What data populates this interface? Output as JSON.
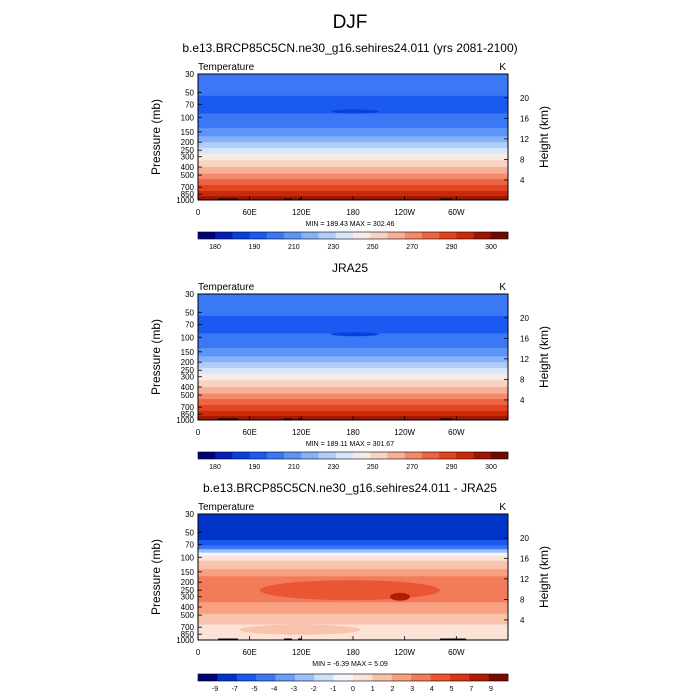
{
  "figure": {
    "title": "DJF"
  },
  "colors": {
    "temperature_palette": [
      "#00007a",
      "#0020b8",
      "#0840e0",
      "#1a5af0",
      "#3a78f5",
      "#5c94f7",
      "#86b2f8",
      "#b0cdfa",
      "#d8e6fb",
      "#f5ece6",
      "#f9d3c2",
      "#f7b097",
      "#f48a6c",
      "#ef6344",
      "#e34420",
      "#c82a0a",
      "#9e1500",
      "#6e0a00"
    ],
    "difference_palette": [
      "#00007a",
      "#0033c8",
      "#1a5af0",
      "#3a78f5",
      "#6a9ef7",
      "#9cc0f9",
      "#cfe0fb",
      "#f2f5fd",
      "#fbe3d8",
      "#f9c2aa",
      "#f7a182",
      "#f27c59",
      "#ea5634",
      "#d73618",
      "#b01d05",
      "#7a0a00"
    ]
  },
  "chart_data": [
    {
      "type": "contour",
      "title": "b.e13.BRCP85C5CN.ne30_g16.sehires24.011 (yrs 2081-2100)",
      "variable_label": "Temperature",
      "units": "K",
      "xlabel": "",
      "ylabel": "Pressure (mb)",
      "right_ylabel": "Height (km)",
      "x_ticks": [
        "0",
        "60E",
        "120E",
        "180",
        "120W",
        "60W"
      ],
      "pressure_ticks": [
        30,
        50,
        70,
        100,
        150,
        200,
        250,
        300,
        400,
        500,
        700,
        850,
        1000
      ],
      "height_ticks": [
        20,
        16,
        12,
        8,
        4
      ],
      "stats": "MIN = 189.43  MAX = 302.46",
      "colorbar_labels": [
        "180",
        "190",
        "210",
        "230",
        "250",
        "270",
        "290",
        "300"
      ],
      "value_range": [
        189.43,
        302.46
      ]
    },
    {
      "type": "contour",
      "title": "JRA25",
      "variable_label": "Temperature",
      "units": "K",
      "xlabel": "",
      "ylabel": "Pressure (mb)",
      "right_ylabel": "Height (km)",
      "x_ticks": [
        "0",
        "60E",
        "120E",
        "180",
        "120W",
        "60W"
      ],
      "pressure_ticks": [
        30,
        50,
        70,
        100,
        150,
        200,
        250,
        300,
        400,
        500,
        700,
        850,
        1000
      ],
      "height_ticks": [
        20,
        16,
        12,
        8,
        4
      ],
      "stats": "MIN = 189.11  MAX = 301.67",
      "colorbar_labels": [
        "180",
        "190",
        "210",
        "230",
        "250",
        "270",
        "290",
        "300"
      ],
      "value_range": [
        189.11,
        301.67
      ]
    },
    {
      "type": "contour",
      "title": "b.e13.BRCP85C5CN.ne30_g16.sehires24.011 - JRA25",
      "variable_label": "Temperature",
      "units": "K",
      "xlabel": "",
      "ylabel": "Pressure (mb)",
      "right_ylabel": "Height (km)",
      "x_ticks": [
        "0",
        "60E",
        "120E",
        "180",
        "120W",
        "60W"
      ],
      "pressure_ticks": [
        30,
        50,
        70,
        100,
        150,
        200,
        250,
        300,
        400,
        500,
        700,
        850,
        1000
      ],
      "height_ticks": [
        20,
        16,
        12,
        8,
        4
      ],
      "stats": "MIN = -6.39  MAX =  5.09",
      "colorbar_labels": [
        "-9",
        "-7",
        "-5",
        "-4",
        "-3",
        "-2",
        "-1",
        "0",
        "1",
        "2",
        "3",
        "4",
        "5",
        "7",
        "9"
      ],
      "value_range": [
        -6.39,
        5.09
      ]
    }
  ]
}
